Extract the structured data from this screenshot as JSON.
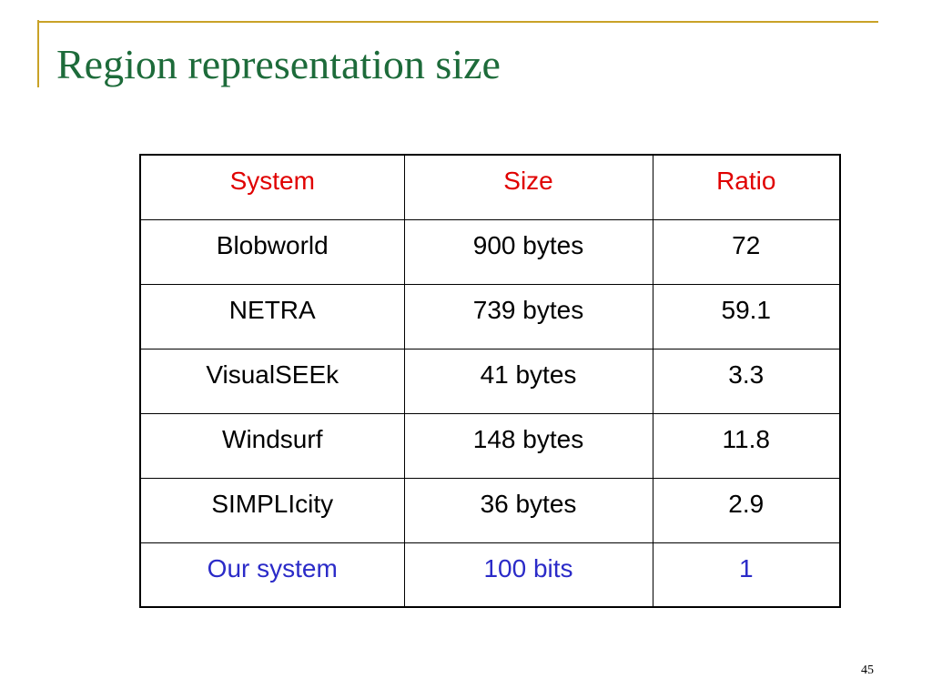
{
  "header": {
    "title": "Region representation size"
  },
  "table": {
    "columns": [
      "System",
      "Size",
      "Ratio"
    ],
    "rows": [
      [
        "Blobworld",
        "900 bytes",
        "72"
      ],
      [
        "NETRA",
        "739 bytes",
        "59.1"
      ],
      [
        "VisualSEEk",
        "41 bytes",
        "3.3"
      ],
      [
        "Windsurf",
        "148 bytes",
        "11.8"
      ],
      [
        "SIMPLIcity",
        "36 bytes",
        "2.9"
      ],
      [
        "Our system",
        "100 bits",
        "1"
      ]
    ]
  },
  "footer": {
    "page_number": "45"
  }
}
